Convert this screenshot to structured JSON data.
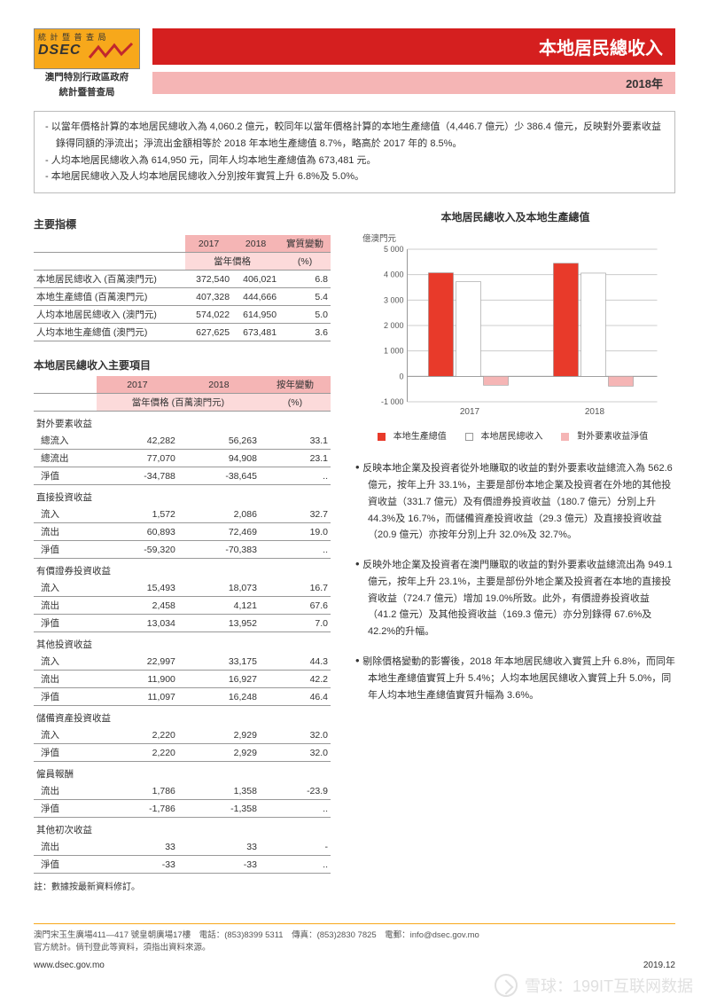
{
  "header": {
    "logo_top": "統 計 暨 普 查 局",
    "logo_text": "DSEC",
    "org1": "澳門特別行政區政府",
    "org2": "統計暨普查局",
    "title": "本地居民總收入",
    "year": "2018年"
  },
  "notes": [
    "以當年價格計算的本地居民總收入為 4,060.2 億元，較同年以當年價格計算的本地生產總值（4,446.7 億元）少 386.4 億元，反映對外要素收益錄得同額的淨流出；淨流出金額相等於 2018 年本地生產總值 8.7%，略高於 2017 年的 8.5%。",
    "人均本地居民總收入為 614,950 元，同年人均本地生產總值為 673,481 元。",
    "本地居民總收入及人均本地居民總收入分別按年實質上升 6.8%及 5.0%。"
  ],
  "t1": {
    "title": "主要指標",
    "h_y1": "2017",
    "h_y2": "2018",
    "h_chg": "實質變動",
    "h_sub": "當年價格",
    "h_pct": "(%)",
    "rows": [
      {
        "l": "本地居民總收入 (百萬澳門元)",
        "a": "372,540",
        "b": "406,021",
        "c": "6.8"
      },
      {
        "l": "本地生產總值 (百萬澳門元)",
        "a": "407,328",
        "b": "444,666",
        "c": "5.4"
      },
      {
        "l": "人均本地居民總收入 (澳門元)",
        "a": "574,022",
        "b": "614,950",
        "c": "5.0"
      },
      {
        "l": "人均本地生產總值 (澳門元)",
        "a": "627,625",
        "b": "673,481",
        "c": "3.6"
      }
    ]
  },
  "t2": {
    "title": "本地居民總收入主要項目",
    "h_y1": "2017",
    "h_y2": "2018",
    "h_chg": "按年變動",
    "h_sub": "當年價格 (百萬澳門元)",
    "h_pct": "(%)",
    "groups": [
      {
        "name": "對外要素收益",
        "rows": [
          {
            "l": "總流入",
            "a": "42,282",
            "b": "56,263",
            "c": "33.1"
          },
          {
            "l": "總流出",
            "a": "77,070",
            "b": "94,908",
            "c": "23.1"
          },
          {
            "l": "淨值",
            "a": "-34,788",
            "b": "-38,645",
            "c": ".."
          }
        ]
      },
      {
        "name": "直接投資收益",
        "rows": [
          {
            "l": "流入",
            "a": "1,572",
            "b": "2,086",
            "c": "32.7"
          },
          {
            "l": "流出",
            "a": "60,893",
            "b": "72,469",
            "c": "19.0"
          },
          {
            "l": "淨值",
            "a": "-59,320",
            "b": "-70,383",
            "c": ".."
          }
        ]
      },
      {
        "name": "有價證券投資收益",
        "rows": [
          {
            "l": "流入",
            "a": "15,493",
            "b": "18,073",
            "c": "16.7"
          },
          {
            "l": "流出",
            "a": "2,458",
            "b": "4,121",
            "c": "67.6"
          },
          {
            "l": "淨值",
            "a": "13,034",
            "b": "13,952",
            "c": "7.0"
          }
        ]
      },
      {
        "name": "其他投資收益",
        "rows": [
          {
            "l": "流入",
            "a": "22,997",
            "b": "33,175",
            "c": "44.3"
          },
          {
            "l": "流出",
            "a": "11,900",
            "b": "16,927",
            "c": "42.2"
          },
          {
            "l": "淨值",
            "a": "11,097",
            "b": "16,248",
            "c": "46.4"
          }
        ]
      },
      {
        "name": "儲備資產投資收益",
        "rows": [
          {
            "l": "流入",
            "a": "2,220",
            "b": "2,929",
            "c": "32.0"
          },
          {
            "l": "淨值",
            "a": "2,220",
            "b": "2,929",
            "c": "32.0"
          }
        ]
      },
      {
        "name": "僱員報酬",
        "rows": [
          {
            "l": "流出",
            "a": "1,786",
            "b": "1,358",
            "c": "-23.9"
          },
          {
            "l": "淨值",
            "a": "-1,786",
            "b": "-1,358",
            "c": ".."
          }
        ]
      },
      {
        "name": "其他初次收益",
        "rows": [
          {
            "l": "流出",
            "a": "33",
            "b": "33",
            "c": "-"
          },
          {
            "l": "淨值",
            "a": "-33",
            "b": "-33",
            "c": ".."
          }
        ]
      }
    ],
    "footnote": "註：數據按最新資料修訂。"
  },
  "chart": {
    "title": "本地居民總收入及本地生產總值",
    "y_unit": "億澳門元",
    "y_ticks": [
      "-1 000",
      "0",
      "1 000",
      "2 000",
      "3 000",
      "4 000",
      "5 000"
    ],
    "ymin": -1000,
    "ymax": 5000,
    "categories": [
      "2017",
      "2018"
    ],
    "series": [
      {
        "name": "本地生產總值",
        "color": "#e83a2a",
        "vals": [
          4073,
          4447
        ]
      },
      {
        "name": "本地居民總收入",
        "color": "#ffffff",
        "vals": [
          3725,
          4060
        ]
      },
      {
        "name": "對外要素收益淨值",
        "color": "#f5b5b5",
        "vals": [
          -348,
          -386
        ]
      }
    ],
    "legend": [
      "本地生產總值",
      "本地居民總收入",
      "對外要素收益淨值"
    ],
    "bg": "#ffffff",
    "grid_color": "#cccccc",
    "bar_width": 0.22
  },
  "bullets": [
    "反映本地企業及投資者從外地賺取的收益的對外要素收益總流入為 562.6 億元，按年上升 33.1%，主要是部份本地企業及投資者在外地的其他投資收益（331.7 億元）及有價證券投資收益（180.7 億元）分別上升 44.3%及 16.7%，而儲備資產投資收益（29.3 億元）及直接投資收益（20.9 億元）亦按年分別上升 32.0%及 32.7%。",
    "反映外地企業及投資者在澳門賺取的收益的對外要素收益總流出為 949.1 億元，按年上升 23.1%，主要是部份外地企業及投資者在本地的直接投資收益（724.7 億元）增加 19.0%所致。此外，有價證券投資收益（41.2 億元）及其他投資收益（169.3 億元）亦分別錄得 67.6%及 42.2%的升幅。",
    "剔除價格變動的影響後，2018 年本地居民總收入實質上升 6.8%，而同年本地生產總值實質上升 5.4%；人均本地居民總收入實質上升 5.0%，同年人均本地生產總值實質升幅為 3.6%。"
  ],
  "footer": {
    "addr": "澳門宋玉生廣場411—417 號皇朝廣場17樓　電話：(853)8399 5311　傳真：(853)2830 7825　電郵：info@dsec.gov.mo",
    "addr2": "官方統計。倘刊登此等資料，須指出資料來源。",
    "url": "www.dsec.gov.mo",
    "date": "2019.12"
  },
  "watermark": "雪球：199IT互联网数据"
}
